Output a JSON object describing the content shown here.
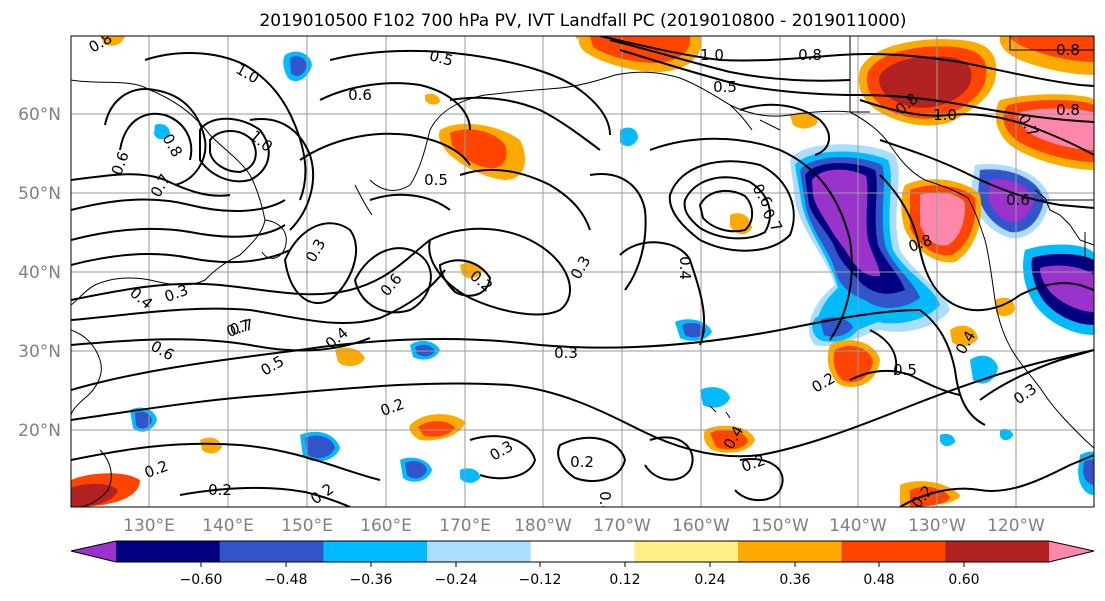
{
  "title": "2019010500 F102 700 hPa PV, IVT Landfall PC (2019010800 - 2019011000)",
  "lat_labels": [
    "60°N",
    "50°N",
    "40°N",
    "30°N",
    "20°N"
  ],
  "lon_labels": [
    "130°E",
    "140°E",
    "150°E",
    "160°E",
    "170°E",
    "180°W",
    "170°W",
    "160°W",
    "150°W",
    "140°W",
    "130°W",
    "120°W"
  ],
  "colorbar": {
    "colors": [
      "#9933cc",
      "#000080",
      "#3355cc",
      "#00bbff",
      "#aaddff",
      "#ffffff",
      "#ffee88",
      "#ffaa00",
      "#ff4400",
      "#b22222",
      "#ff88aa"
    ],
    "tick_labels": [
      "−0.60",
      "−0.48",
      "−0.36",
      "−0.24",
      "−0.12",
      "0.12",
      "0.24",
      "0.36",
      "0.48",
      "0.60"
    ]
  },
  "contour_labels": [
    "0.8",
    "0.5",
    "1.0",
    "0.8",
    "0.5",
    "0.8",
    "1.0",
    "0.8",
    "1.0",
    "0.8",
    "0.6",
    "0.8",
    "0.7",
    "1.0",
    "0.5",
    "0.6",
    "0.7",
    "0.3",
    "0.6",
    "0.2",
    "0.3",
    "0.4",
    "0.6",
    "0.7",
    "0.8",
    "0.6",
    "0.3",
    "0.4",
    "0.6",
    "0.7",
    "0.5",
    "0.4",
    "0.3",
    "0.2",
    "0.5",
    "0.4",
    "0.2",
    "0.3",
    "0.2",
    "0.2",
    "0.4",
    "0.2",
    "0.2",
    "0.3",
    "0.2",
    "0.2",
    "0.4",
    "0.7"
  ]
}
